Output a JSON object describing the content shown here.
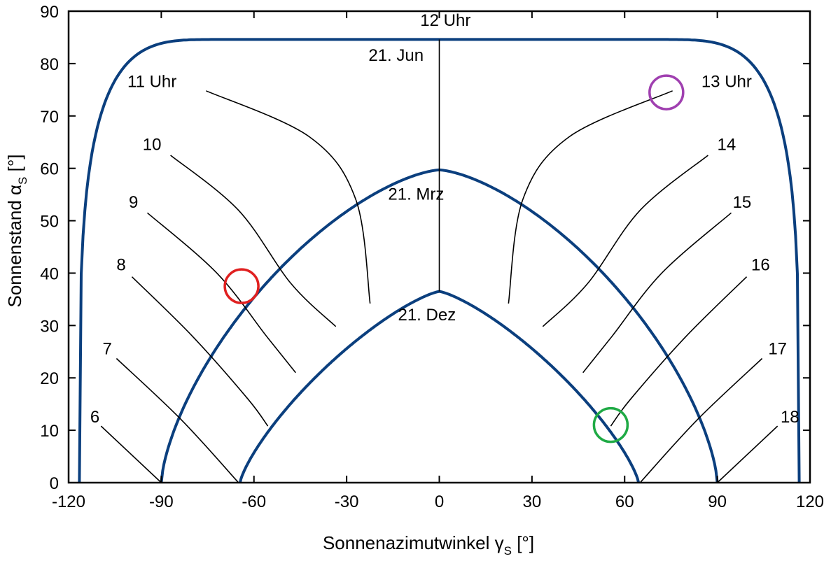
{
  "chart_data": {
    "type": "line",
    "xlabel": "Sonnenazimutwinkel γS [°]",
    "ylabel": "Sonnenstand αS [°]",
    "xlabel_parts": {
      "main": "Sonnenazimutwinkel γ",
      "sub": "S",
      "unit": " [°]"
    },
    "ylabel_parts": {
      "main": "Sonnenstand α",
      "sub": "S",
      "unit": " [°]"
    },
    "xlim": [
      -120,
      120
    ],
    "ylim": [
      0,
      90
    ],
    "xticks": [
      "-120",
      "-90",
      "-60",
      "-30",
      "0",
      "30",
      "60",
      "90",
      "120"
    ],
    "yticks": [
      "0",
      "10",
      "20",
      "30",
      "40",
      "50",
      "60",
      "70",
      "80",
      "90"
    ],
    "grid": false,
    "colors": {
      "sun_path": "#0b3f7e",
      "hour_line": "#000000",
      "red_marker": "#e02020",
      "green_marker": "#1faa45",
      "purple_marker": "#a040b0"
    },
    "sun_paths": [
      {
        "name": "21. Jun",
        "azimuth_limit": 116.5,
        "peak_altitude": 84.6,
        "plateau_width": 0.6,
        "shape_exponent": 4.0,
        "label_pos": [
          -14,
          80.5
        ]
      },
      {
        "name": "21. Mrz",
        "azimuth_limit": 90,
        "peak_altitude": 59.7,
        "plateau_width": 0,
        "shape_exponent": 1.5,
        "label_pos": [
          -7.5,
          54
        ]
      },
      {
        "name": "21. Dez",
        "azimuth_limit": 64.5,
        "peak_altitude": 36.5,
        "plateau_width": 0,
        "shape_exponent": 1.3,
        "label_pos": [
          -4,
          31
        ]
      }
    ],
    "hour_lines": [
      {
        "label": "12 Uhr",
        "label_pos": [
          2,
          87.2
        ],
        "points": [
          [
            0,
            84.6
          ],
          [
            0,
            59.7
          ],
          [
            0,
            36.5
          ]
        ]
      },
      {
        "label": "11 Uhr",
        "label_pos": [
          -93,
          75.5
        ],
        "points": [
          [
            -75.5,
            74.8
          ],
          [
            -42,
            66
          ],
          [
            -27,
            54
          ],
          [
            -22.4,
            34.2
          ]
        ]
      },
      {
        "label": "13 Uhr",
        "label_pos": [
          93,
          75.5
        ],
        "points": [
          [
            75.5,
            74.8
          ],
          [
            42,
            66
          ],
          [
            27,
            54
          ],
          [
            22.4,
            34.2
          ]
        ]
      },
      {
        "label": "10",
        "label_pos": [
          -93,
          63.5
        ],
        "points": [
          [
            -87,
            62.5
          ],
          [
            -65,
            52
          ],
          [
            -48,
            38
          ],
          [
            -33.5,
            29.8
          ]
        ]
      },
      {
        "label": "14",
        "label_pos": [
          93,
          63.5
        ],
        "points": [
          [
            87,
            62.5
          ],
          [
            65,
            52
          ],
          [
            48,
            38
          ],
          [
            33.5,
            29.8
          ]
        ]
      },
      {
        "label": "9",
        "label_pos": [
          -99,
          52.5
        ],
        "points": [
          [
            -94.5,
            51.5
          ],
          [
            -72,
            40
          ],
          [
            -56,
            28
          ],
          [
            -46.5,
            21
          ]
        ]
      },
      {
        "label": "15",
        "label_pos": [
          98,
          52.5
        ],
        "points": [
          [
            94.5,
            51.5
          ],
          [
            72,
            40
          ],
          [
            56,
            28
          ],
          [
            46.5,
            21
          ]
        ]
      },
      {
        "label": "8",
        "label_pos": [
          -103,
          40.5
        ],
        "points": [
          [
            -99.5,
            39.3
          ],
          [
            -80,
            28
          ],
          [
            -62,
            16
          ],
          [
            -55.5,
            10.8
          ]
        ]
      },
      {
        "label": "16",
        "label_pos": [
          104,
          40.5
        ],
        "points": [
          [
            99.5,
            39.3
          ],
          [
            80,
            28
          ],
          [
            62,
            16
          ],
          [
            55.5,
            10.8
          ]
        ]
      },
      {
        "label": "7",
        "label_pos": [
          -107.5,
          24.5
        ],
        "points": [
          [
            -104.5,
            23.7
          ],
          [
            -83.5,
            12
          ],
          [
            -65,
            0
          ]
        ]
      },
      {
        "label": "17",
        "label_pos": [
          109.5,
          24.5
        ],
        "points": [
          [
            104.5,
            23.7
          ],
          [
            83.5,
            12
          ],
          [
            65,
            0
          ]
        ]
      },
      {
        "label": "6",
        "label_pos": [
          -111.5,
          11.5
        ],
        "points": [
          [
            -109.5,
            10.8
          ],
          [
            -90,
            0
          ]
        ]
      },
      {
        "label": "18",
        "label_pos": [
          113.5,
          11.5
        ],
        "points": [
          [
            109.5,
            10.8
          ],
          [
            90,
            0
          ]
        ]
      }
    ],
    "markers": [
      {
        "name": "red-circle-marker",
        "x": -64,
        "y": 37.5,
        "color": "#e02020"
      },
      {
        "name": "green-circle-marker",
        "x": 55.5,
        "y": 11,
        "color": "#1faa45"
      },
      {
        "name": "purple-circle-marker",
        "x": 73.5,
        "y": 74.5,
        "color": "#a040b0"
      }
    ]
  }
}
